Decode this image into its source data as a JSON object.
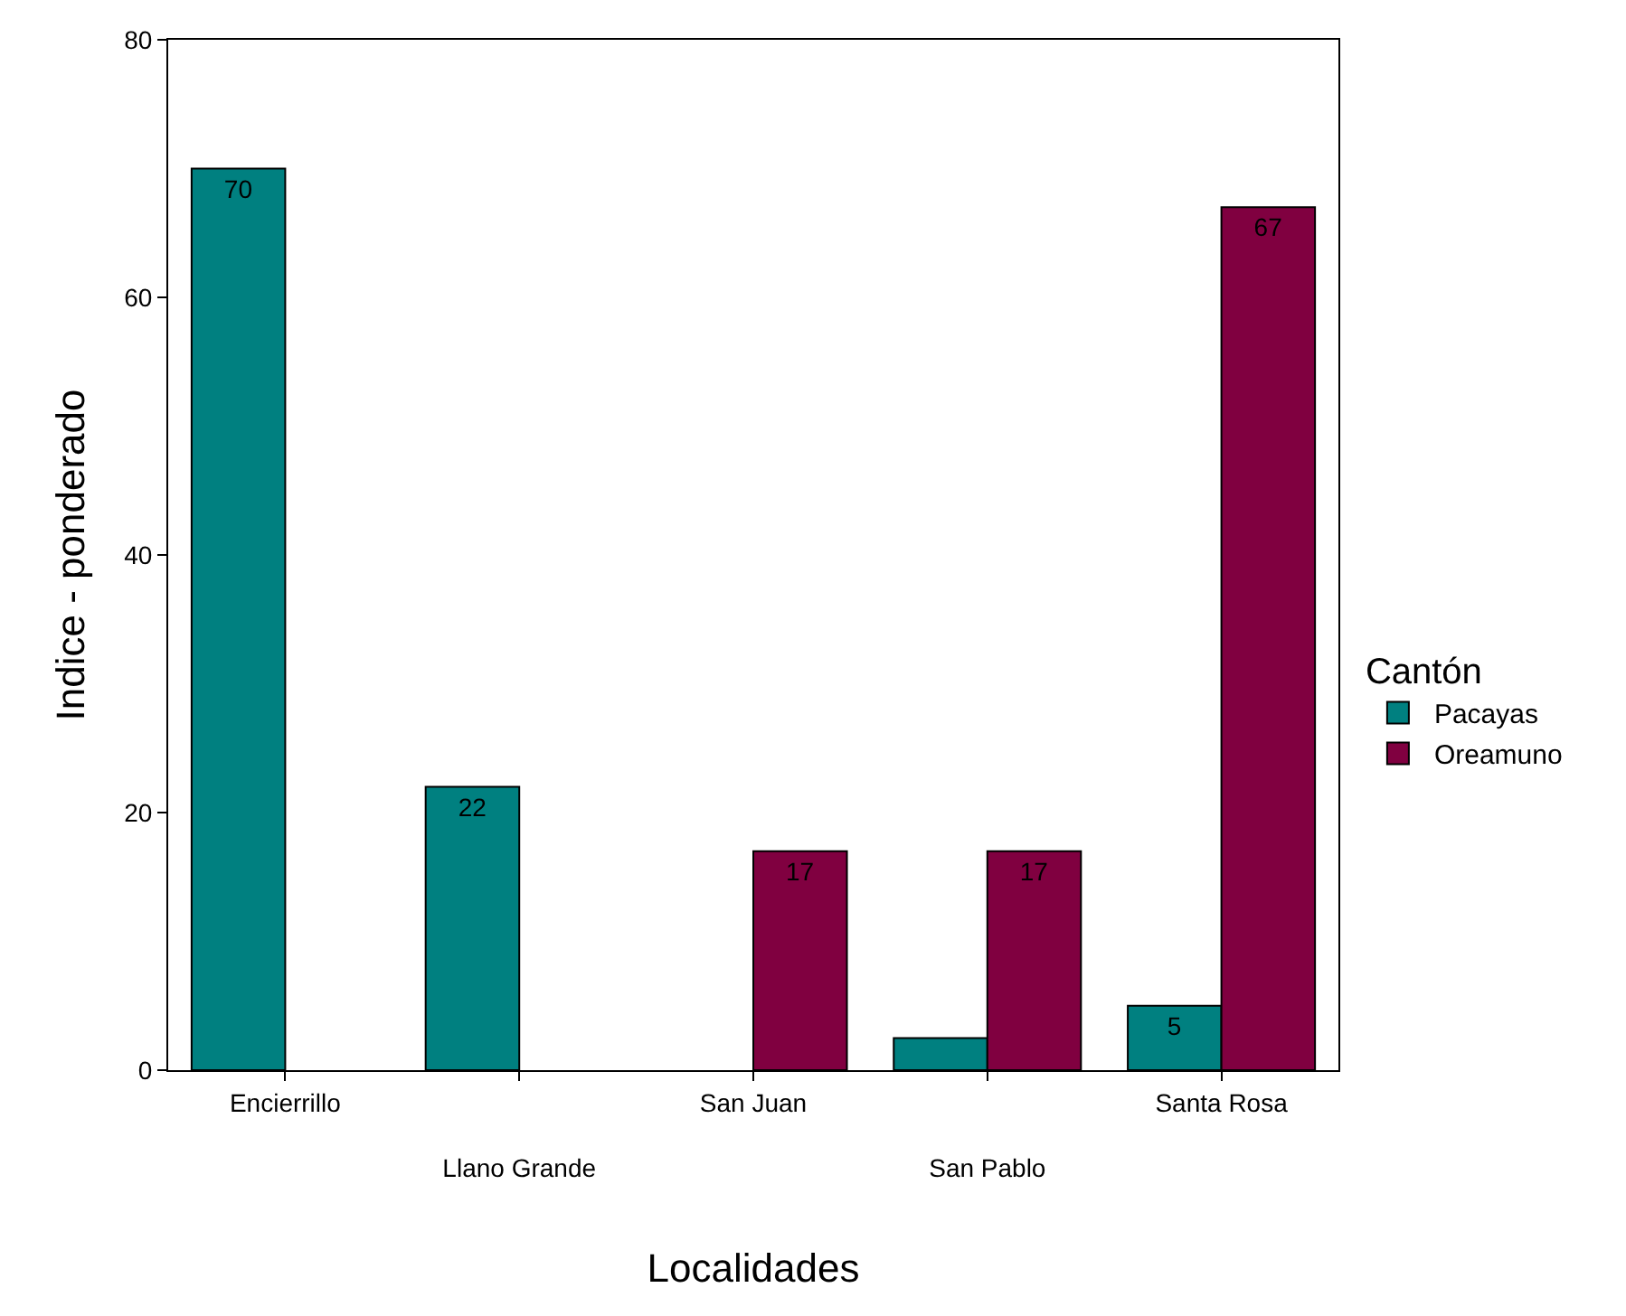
{
  "chart_data": {
    "type": "bar",
    "xlabel": "Localidades",
    "ylabel": "Indice - ponderado",
    "legend_title": "Cantón",
    "categories": [
      "Encierrillo",
      "Llano Grande",
      "San Juan",
      "San Pablo",
      "Santa Rosa"
    ],
    "series": [
      {
        "name": "Pacayas",
        "color": "#008080",
        "values": [
          70,
          22,
          null,
          2.5,
          5
        ],
        "value_labels": [
          "70",
          "22",
          null,
          null,
          "5"
        ]
      },
      {
        "name": "Oreamuno",
        "color": "#800040",
        "values": [
          null,
          null,
          17,
          17,
          67
        ],
        "value_labels": [
          null,
          null,
          "17",
          "17",
          "67"
        ]
      }
    ],
    "ylim": [
      0,
      80
    ],
    "yticks": [
      0,
      20,
      40,
      60,
      80
    ],
    "grid": false,
    "legend": "right"
  }
}
